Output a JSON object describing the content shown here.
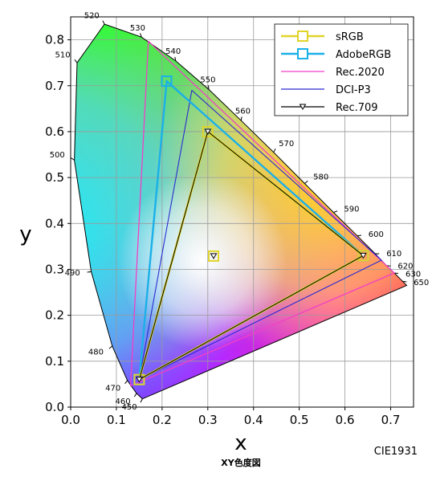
{
  "chart_data": {
    "type": "scatter",
    "title": "XY色度図",
    "credit": "CIE1931",
    "xlabel": "x",
    "ylabel": "y",
    "xlim": [
      0,
      0.75
    ],
    "ylim": [
      0,
      0.85
    ],
    "x_ticks": [
      0.0,
      0.1,
      0.2,
      0.3,
      0.4,
      0.5,
      0.6,
      0.7
    ],
    "y_ticks": [
      0.0,
      0.1,
      0.2,
      0.3,
      0.4,
      0.5,
      0.6,
      0.7,
      0.8
    ],
    "x_tick_labels": [
      "0.0",
      "0.1",
      "0.2",
      "0.3",
      "0.4",
      "0.5",
      "0.6",
      "0.7"
    ],
    "y_tick_labels": [
      "0.0",
      "0.1",
      "0.2",
      "0.3",
      "0.4",
      "0.5",
      "0.6",
      "0.7",
      "0.8"
    ],
    "grid": true,
    "legend_position": "top-right",
    "spectral_locus": [
      {
        "nm": "450",
        "x": 0.157,
        "y": 0.018
      },
      {
        "nm": "460",
        "x": 0.144,
        "y": 0.03
      },
      {
        "nm": "470",
        "x": 0.124,
        "y": 0.058
      },
      {
        "nm": "480",
        "x": 0.091,
        "y": 0.133
      },
      {
        "nm": "490",
        "x": 0.045,
        "y": 0.295
      },
      {
        "nm": "500",
        "x": 0.008,
        "y": 0.538
      },
      {
        "nm": "510",
        "x": 0.014,
        "y": 0.75
      },
      {
        "nm": "520",
        "x": 0.074,
        "y": 0.834
      },
      {
        "nm": "530",
        "x": 0.155,
        "y": 0.806
      },
      {
        "nm": "540",
        "x": 0.23,
        "y": 0.754
      },
      {
        "nm": "550",
        "x": 0.302,
        "y": 0.692
      },
      {
        "nm": "560",
        "x": 0.373,
        "y": 0.624
      },
      {
        "nm": "570",
        "x": 0.444,
        "y": 0.555
      },
      {
        "nm": "580",
        "x": 0.512,
        "y": 0.487
      },
      {
        "nm": "590",
        "x": 0.575,
        "y": 0.424
      },
      {
        "nm": "600",
        "x": 0.627,
        "y": 0.373
      },
      {
        "nm": "610",
        "x": 0.666,
        "y": 0.334
      },
      {
        "nm": "620",
        "x": 0.691,
        "y": 0.308
      },
      {
        "nm": "630",
        "x": 0.708,
        "y": 0.292
      },
      {
        "nm": "650",
        "x": 0.726,
        "y": 0.274
      },
      {
        "nm": "",
        "x": 0.735,
        "y": 0.265
      }
    ],
    "series": [
      {
        "name": "sRGB",
        "color": "#e0d42a",
        "marker": "square",
        "points": [
          [
            0.64,
            0.33
          ],
          [
            0.3,
            0.6
          ],
          [
            0.15,
            0.06
          ]
        ]
      },
      {
        "name": "AdobeRGB",
        "color": "#1ab0e8",
        "marker": "square",
        "points": [
          [
            0.64,
            0.33
          ],
          [
            0.21,
            0.71
          ],
          [
            0.15,
            0.06
          ]
        ]
      },
      {
        "name": "Rec.2020",
        "color": "#f23fc6",
        "marker": "none",
        "points": [
          [
            0.708,
            0.292
          ],
          [
            0.17,
            0.797
          ],
          [
            0.131,
            0.046
          ]
        ]
      },
      {
        "name": "DCI-P3",
        "color": "#2b2bd0",
        "marker": "none",
        "points": [
          [
            0.68,
            0.32
          ],
          [
            0.265,
            0.69
          ],
          [
            0.15,
            0.06
          ]
        ]
      },
      {
        "name": "Rec.709",
        "color": "#000000",
        "marker": "triangle-down",
        "points": [
          [
            0.64,
            0.33
          ],
          [
            0.3,
            0.6
          ],
          [
            0.15,
            0.06
          ]
        ]
      }
    ],
    "white_point": {
      "x": 0.3127,
      "y": 0.329
    }
  }
}
